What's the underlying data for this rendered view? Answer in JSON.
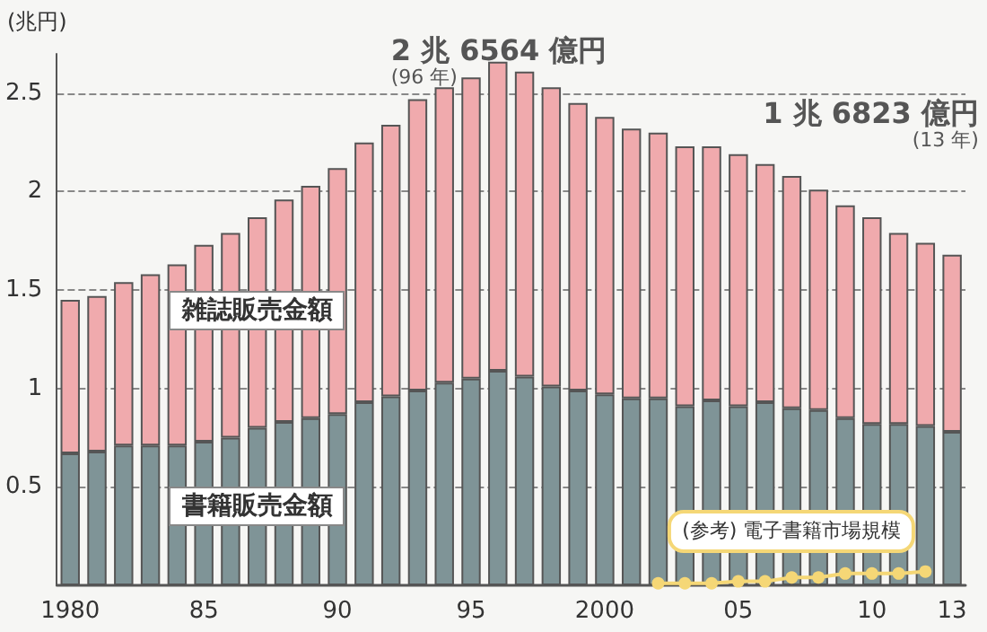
{
  "chart_data": {
    "type": "bar",
    "stacked": true,
    "ylabel": "(兆円)",
    "categories": [
      "1980",
      null,
      null,
      null,
      null,
      "85",
      null,
      null,
      null,
      null,
      "90",
      null,
      null,
      null,
      null,
      "95",
      null,
      null,
      null,
      null,
      "2000",
      null,
      null,
      null,
      null,
      "05",
      null,
      null,
      null,
      null,
      "10",
      null,
      null,
      "13"
    ],
    "series": [
      {
        "name": "書籍販売金額",
        "color": "#7f9497",
        "values": [
          0.67,
          0.68,
          0.71,
          0.71,
          0.71,
          0.73,
          0.75,
          0.8,
          0.83,
          0.85,
          0.87,
          0.93,
          0.96,
          0.99,
          1.03,
          1.05,
          1.09,
          1.06,
          1.01,
          0.99,
          0.97,
          0.95,
          0.95,
          0.91,
          0.94,
          0.91,
          0.93,
          0.9,
          0.89,
          0.85,
          0.82,
          0.82,
          0.81,
          0.78
        ]
      },
      {
        "name": "雑誌販売金額",
        "color": "#f0aaad",
        "values": [
          0.78,
          0.79,
          0.83,
          0.87,
          0.92,
          1.0,
          1.04,
          1.07,
          1.13,
          1.18,
          1.25,
          1.32,
          1.38,
          1.48,
          1.5,
          1.53,
          1.57,
          1.55,
          1.52,
          1.46,
          1.41,
          1.37,
          1.35,
          1.32,
          1.29,
          1.28,
          1.21,
          1.18,
          1.12,
          1.08,
          1.05,
          0.97,
          0.93,
          0.9
        ]
      },
      {
        "name": "(参考) 電子書籍市場規模",
        "type": "line",
        "color": "#f5d776",
        "values": [
          null,
          null,
          null,
          null,
          null,
          null,
          null,
          null,
          null,
          null,
          null,
          null,
          null,
          null,
          null,
          null,
          null,
          null,
          null,
          null,
          null,
          null,
          0.01,
          0.01,
          0.01,
          0.02,
          0.02,
          0.04,
          0.04,
          0.06,
          0.06,
          0.06,
          0.07,
          null
        ]
      }
    ],
    "ylim": [
      0,
      2.7
    ],
    "yticks": [
      0.5,
      1,
      1.5,
      2,
      2.5
    ],
    "grid": "y",
    "legend": false,
    "marker": "circle",
    "annotations": [
      "2 兆 6564 億円",
      "(96 年)",
      "1 兆 6823 億円",
      "(13 年)"
    ]
  }
}
